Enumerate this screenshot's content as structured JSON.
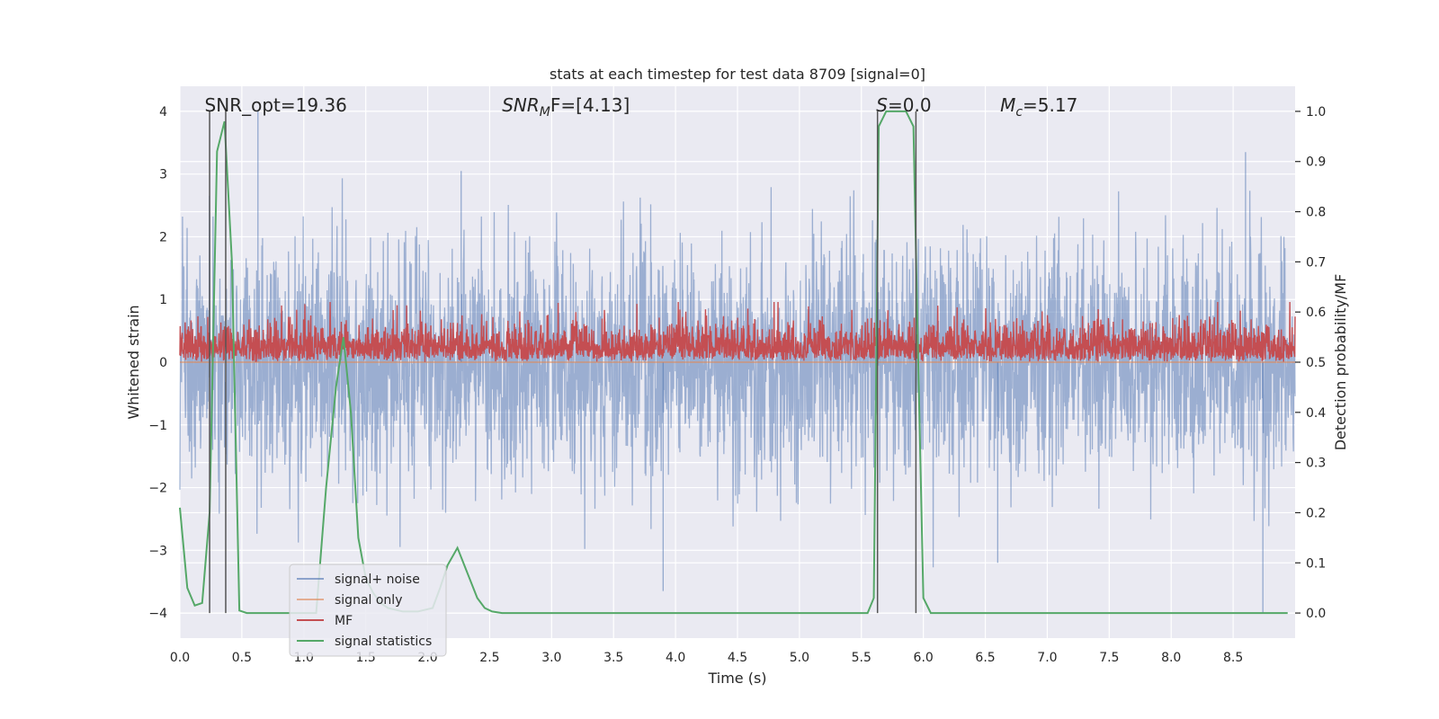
{
  "chart_data": {
    "type": "line",
    "title": "stats at each timestep for test data 8709 [signal=0]",
    "xlabel": "Time (s)",
    "ylabel_left": "Whitened strain",
    "ylabel_right": "Detection probability/MF",
    "xlim": [
      0,
      9.0
    ],
    "ylim_left": [
      -4.4,
      4.4
    ],
    "ylim_right": [
      -0.05,
      1.05
    ],
    "xticks": [
      0,
      0.5,
      1.0,
      1.5,
      2.0,
      2.5,
      3.0,
      3.5,
      4.0,
      4.5,
      5.0,
      5.5,
      6.0,
      6.5,
      7.0,
      7.5,
      8.0,
      8.5
    ],
    "xtick_labels": [
      "0.0",
      "0.5",
      "1.0",
      "1.5",
      "2.0",
      "2.5",
      "3.0",
      "3.5",
      "4.0",
      "4.5",
      "5.0",
      "5.5",
      "6.0",
      "6.5",
      "7.0",
      "7.5",
      "8.0",
      "8.5"
    ],
    "yticks_left": [
      -4,
      -3,
      -2,
      -1,
      0,
      1,
      2,
      3,
      4
    ],
    "ytick_labels_left": [
      "−4",
      "−3",
      "−2",
      "−1",
      "0",
      "1",
      "2",
      "3",
      "4"
    ],
    "yticks_right": [
      0.0,
      0.1,
      0.2,
      0.3,
      0.4,
      0.5,
      0.6,
      0.7,
      0.8,
      0.9,
      1.0
    ],
    "ytick_labels_right": [
      "0.0",
      "0.1",
      "0.2",
      "0.3",
      "0.4",
      "0.5",
      "0.6",
      "0.7",
      "0.8",
      "0.9",
      "1.0"
    ],
    "grid": true,
    "legend_placement": "lower-left",
    "annotations": [
      {
        "prefix": "SNR_opt=19.36",
        "sub": "",
        "suffix": "",
        "italic": false,
        "x": 0.2
      },
      {
        "prefix": "SNR",
        "sub": "M",
        "suffix": "F=[4.13]",
        "italic": true,
        "x": 2.6
      },
      {
        "prefix": "S",
        "sub": "",
        "suffix": "=0.0",
        "italic": true,
        "x": 5.62
      },
      {
        "prefix": "M",
        "sub": "c",
        "suffix": "=5.17",
        "italic": true,
        "x": 6.62
      }
    ],
    "vlines": [
      0.24,
      0.37,
      5.63,
      5.94
    ],
    "series": [
      {
        "name": "signal+ noise",
        "color": "#4c72b0",
        "axis": "left",
        "style": "noise",
        "values": [],
        "peaks": [
          {
            "x": 0.63,
            "y": 4.0
          },
          {
            "x": 2.27,
            "y": 3.05
          },
          {
            "x": 8.6,
            "y": 3.35
          },
          {
            "x": 3.9,
            "y": -3.65
          },
          {
            "x": 6.6,
            "y": -3.2
          },
          {
            "x": 8.74,
            "y": -4.0
          }
        ]
      },
      {
        "name": "signal only",
        "color": "#dd8452",
        "axis": "left",
        "style": "flat",
        "values": []
      },
      {
        "name": "MF",
        "color": "#c44e52",
        "axis": "right",
        "style": "mf",
        "values": []
      },
      {
        "name": "signal statistics",
        "color": "#55a868",
        "axis": "right",
        "style": "line",
        "x": [
          0.0,
          0.06,
          0.12,
          0.18,
          0.24,
          0.3,
          0.36,
          0.42,
          0.48,
          0.54,
          0.6,
          0.66,
          1.1,
          1.18,
          1.26,
          1.32,
          1.38,
          1.44,
          1.5,
          1.56,
          1.62,
          1.68,
          1.8,
          1.92,
          2.04,
          2.1,
          2.16,
          2.24,
          2.32,
          2.4,
          2.46,
          2.52,
          2.6,
          2.7,
          5.55,
          5.6,
          5.64,
          5.7,
          5.78,
          5.86,
          5.92,
          5.95,
          6.0,
          6.06,
          6.12,
          8.94
        ],
        "y": [
          0.21,
          0.05,
          0.015,
          0.02,
          0.2,
          0.92,
          0.98,
          0.7,
          0.005,
          0.0,
          0.0,
          0.0,
          0.0,
          0.25,
          0.45,
          0.55,
          0.4,
          0.15,
          0.07,
          0.04,
          0.02,
          0.01,
          0.003,
          0.003,
          0.01,
          0.05,
          0.095,
          0.13,
          0.08,
          0.03,
          0.01,
          0.003,
          0.0,
          0.0,
          0.0,
          0.03,
          0.97,
          1.0,
          1.0,
          1.0,
          0.97,
          0.6,
          0.03,
          0.0,
          0.0,
          0.0
        ]
      }
    ]
  }
}
